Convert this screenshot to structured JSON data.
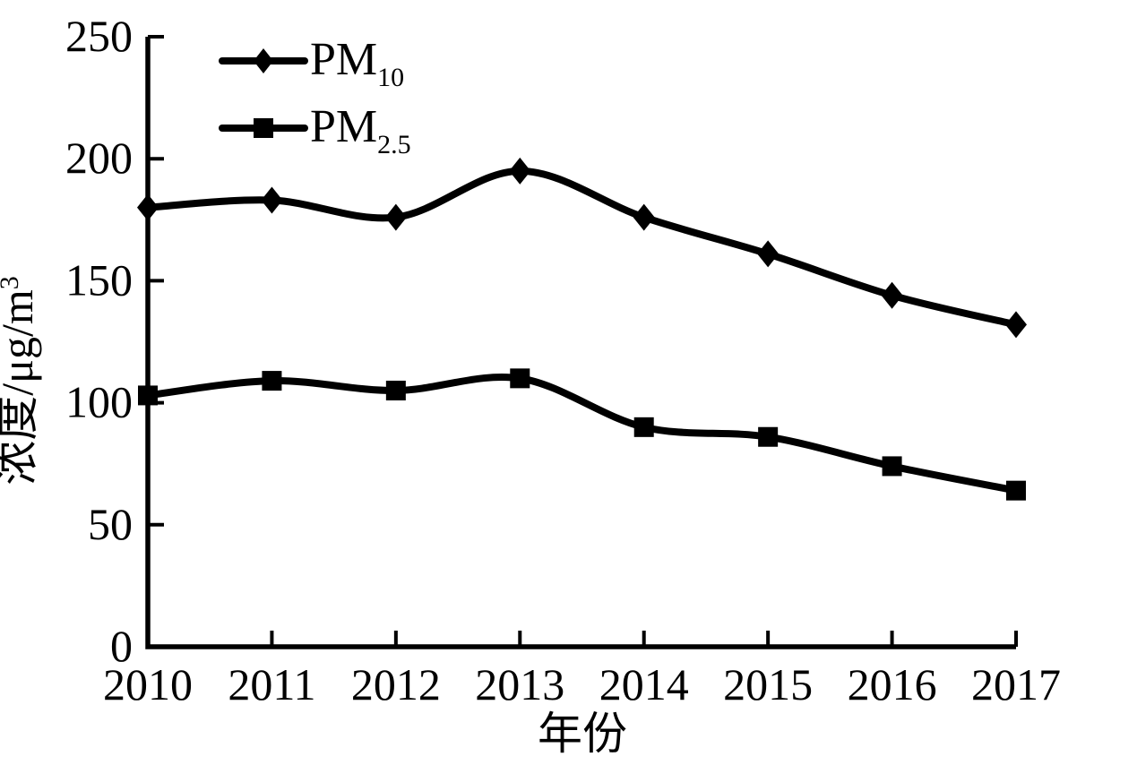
{
  "figure": {
    "background": "#ffffff",
    "ink_color": "#000000"
  },
  "chart_data": {
    "type": "line",
    "title": "",
    "xlabel": "年份",
    "ylabel": "浓度/μg/m³",
    "ylabel_base": "浓度/μg/m",
    "ylabel_sup": "3",
    "x": [
      2010,
      2011,
      2012,
      2013,
      2014,
      2015,
      2016,
      2017
    ],
    "xtick_labels": [
      "2010",
      "2011",
      "2012",
      "2013",
      "2014",
      "2015",
      "2016",
      "2017"
    ],
    "yticks": [
      0,
      50,
      100,
      150,
      200,
      250
    ],
    "ylim": [
      0,
      250
    ],
    "grid": false,
    "legend_position": "top-left-inside",
    "series": [
      {
        "name": "PM10",
        "label_base": "PM",
        "label_sub": "10",
        "marker": "diamond",
        "color": "#000000",
        "values": [
          180,
          183,
          176,
          195,
          176,
          161,
          144,
          132
        ]
      },
      {
        "name": "PM2.5",
        "label_base": "PM",
        "label_sub": "2.5",
        "marker": "square",
        "color": "#000000",
        "values": [
          103,
          109,
          105,
          110,
          90,
          86,
          74,
          64
        ]
      }
    ]
  }
}
